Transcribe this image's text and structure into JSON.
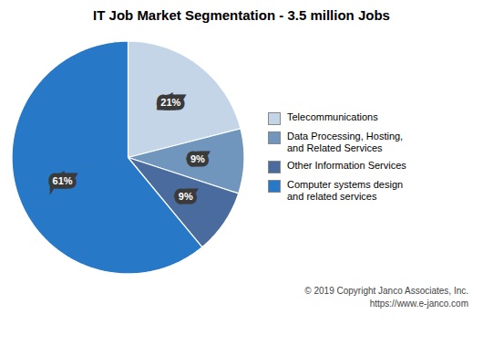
{
  "chart_data": {
    "type": "pie",
    "title": "IT Job Market Segmentation - 3.5 million Jobs",
    "categories": [
      "Telecommunications",
      "Data Processing, Hosting,\nand Related Services",
      "Other Information Services",
      "Computer systems design\nand related services"
    ],
    "values": [
      21,
      9,
      9,
      61
    ],
    "value_labels": [
      "21%",
      "9%",
      "9%",
      "61%"
    ],
    "colors": [
      "#c5d5e8",
      "#7096be",
      "#4a6b9d",
      "#2878c8"
    ],
    "data_labels": true,
    "legend": "right",
    "annotations": [
      "© 2019 Copyright Janco Associates, Inc.",
      "https://www.e-janco.com"
    ]
  }
}
